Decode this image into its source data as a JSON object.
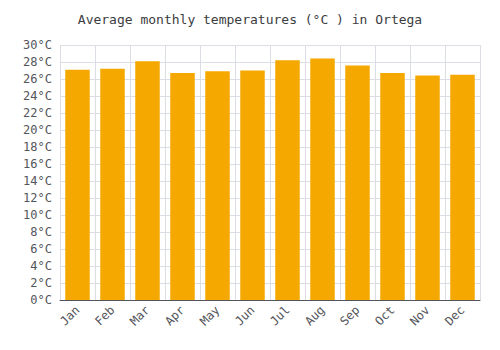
{
  "chart_data": {
    "type": "bar",
    "title": "Average monthly temperatures (°C ) in Ortega",
    "categories": [
      "Jan",
      "Feb",
      "Mar",
      "Apr",
      "May",
      "Jun",
      "Jul",
      "Aug",
      "Sep",
      "Oct",
      "Nov",
      "Dec"
    ],
    "values": [
      27.1,
      27.2,
      28.1,
      26.7,
      26.9,
      27.0,
      28.2,
      28.4,
      27.6,
      26.7,
      26.4,
      26.5
    ],
    "color": "#F5A800",
    "ylim": [
      0,
      30
    ],
    "yticks": [
      {
        "value": 0,
        "label": "0°C"
      },
      {
        "value": 2,
        "label": "2°C"
      },
      {
        "value": 4,
        "label": "4°C"
      },
      {
        "value": 6,
        "label": "6°C"
      },
      {
        "value": 8,
        "label": "8°C"
      },
      {
        "value": 10,
        "label": "10°C"
      },
      {
        "value": 12,
        "label": "12°C"
      },
      {
        "value": 14,
        "label": "14°C"
      },
      {
        "value": 16,
        "label": "16°C"
      },
      {
        "value": 18,
        "label": "18°C"
      },
      {
        "value": 20,
        "label": "20°C"
      },
      {
        "value": 22,
        "label": "22°C"
      },
      {
        "value": 24,
        "label": "24°C"
      },
      {
        "value": 26,
        "label": "26°C"
      },
      {
        "value": 28,
        "label": "28°C"
      },
      {
        "value": 30,
        "label": "30°C"
      }
    ],
    "grid": true
  }
}
